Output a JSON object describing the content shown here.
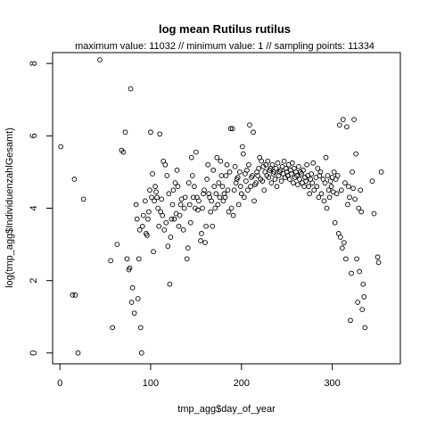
{
  "chart_data": {
    "type": "scatter",
    "title": "log mean Rutilus rutilus",
    "subtitle": "maximum value: 11032  //  minimum value: 1  // sampling points: 11334",
    "xlabel": "tmp_agg$day_of_year",
    "ylabel": "log(tmp_agg$IndividuenzahlGesamt)",
    "xlim": [
      -8,
      375
    ],
    "ylim": [
      -0.3,
      8.3
    ],
    "x_ticks": [
      0,
      100,
      200,
      300
    ],
    "x_tick_labels": [
      "0",
      "100",
      "200",
      "300"
    ],
    "y_ticks": [
      0,
      2,
      4,
      6,
      8
    ],
    "y_tick_labels": [
      "0",
      "2",
      "4",
      "6",
      "8"
    ],
    "grid": false,
    "marker": "open-circle",
    "points": [
      [
        1,
        5.7
      ],
      [
        14,
        1.6
      ],
      [
        16,
        4.8
      ],
      [
        17,
        1.6
      ],
      [
        20,
        0.0
      ],
      [
        26,
        4.25
      ],
      [
        44,
        8.1
      ],
      [
        56,
        2.55
      ],
      [
        58,
        0.7
      ],
      [
        63,
        3.0
      ],
      [
        68,
        5.6
      ],
      [
        70,
        5.55
      ],
      [
        72,
        6.1
      ],
      [
        74,
        2.6
      ],
      [
        76,
        2.3
      ],
      [
        77,
        2.35
      ],
      [
        78,
        7.3
      ],
      [
        79,
        1.4
      ],
      [
        80,
        1.8
      ],
      [
        82,
        1.1
      ],
      [
        84,
        4.1
      ],
      [
        85,
        3.7
      ],
      [
        86,
        1.5
      ],
      [
        87,
        2.6
      ],
      [
        88,
        3.4
      ],
      [
        89,
        0.7
      ],
      [
        90,
        0.0
      ],
      [
        91,
        3.5
      ],
      [
        92,
        3.8
      ],
      [
        94,
        4.2
      ],
      [
        95,
        3.3
      ],
      [
        96,
        3.25
      ],
      [
        97,
        3.7
      ],
      [
        98,
        3.9
      ],
      [
        99,
        4.5
      ],
      [
        100,
        6.1
      ],
      [
        101,
        4.3
      ],
      [
        102,
        4.95
      ],
      [
        103,
        2.8
      ],
      [
        104,
        4.2
      ],
      [
        105,
        4.6
      ],
      [
        106,
        4.45
      ],
      [
        107,
        4.3
      ],
      [
        108,
        4.0
      ],
      [
        109,
        3.5
      ],
      [
        110,
        6.05
      ],
      [
        111,
        3.9
      ],
      [
        112,
        4.25
      ],
      [
        113,
        3.8
      ],
      [
        114,
        5.3
      ],
      [
        115,
        3.4
      ],
      [
        116,
        5.2
      ],
      [
        117,
        3.6
      ],
      [
        118,
        4.9
      ],
      [
        119,
        2.95
      ],
      [
        120,
        4.4
      ],
      [
        121,
        1.9
      ],
      [
        122,
        3.2
      ],
      [
        123,
        3.7
      ],
      [
        124,
        4.1
      ],
      [
        125,
        4.5
      ],
      [
        126,
        3.7
      ],
      [
        127,
        4.7
      ],
      [
        128,
        3.85
      ],
      [
        129,
        5.05
      ],
      [
        130,
        4.6
      ],
      [
        131,
        3.5
      ],
      [
        132,
        3.8
      ],
      [
        133,
        4.1
      ],
      [
        134,
        4.25
      ],
      [
        136,
        3.4
      ],
      [
        137,
        4.0
      ],
      [
        138,
        4.3
      ],
      [
        140,
        2.6
      ],
      [
        141,
        2.9
      ],
      [
        142,
        4.7
      ],
      [
        143,
        4.1
      ],
      [
        144,
        3.6
      ],
      [
        145,
        5.4
      ],
      [
        146,
        4.9
      ],
      [
        147,
        4.3
      ],
      [
        148,
        4.6
      ],
      [
        149,
        4.0
      ],
      [
        150,
        5.55
      ],
      [
        151,
        4.3
      ],
      [
        152,
        3.95
      ],
      [
        153,
        4.2
      ],
      [
        155,
        3.1
      ],
      [
        156,
        3.3
      ],
      [
        157,
        4.0
      ],
      [
        158,
        4.4
      ],
      [
        159,
        4.5
      ],
      [
        160,
        3.05
      ],
      [
        161,
        3.5
      ],
      [
        162,
        4.8
      ],
      [
        163,
        5.2
      ],
      [
        164,
        4.4
      ],
      [
        165,
        4.3
      ],
      [
        166,
        3.9
      ],
      [
        167,
        4.2
      ],
      [
        168,
        3.5
      ],
      [
        169,
        5.05
      ],
      [
        170,
        4.6
      ],
      [
        171,
        4.0
      ],
      [
        172,
        4.4
      ],
      [
        173,
        5.4
      ],
      [
        174,
        4.1
      ],
      [
        175,
        4.7
      ],
      [
        176,
        4.3
      ],
      [
        177,
        5.3
      ],
      [
        178,
        4.9
      ],
      [
        179,
        4.6
      ],
      [
        180,
        4.2
      ],
      [
        181,
        4.4
      ],
      [
        182,
        4.3
      ],
      [
        183,
        4.9
      ],
      [
        184,
        5.2
      ],
      [
        185,
        4.5
      ],
      [
        186,
        3.9
      ],
      [
        187,
        5.0
      ],
      [
        188,
        6.2
      ],
      [
        189,
        4.0
      ],
      [
        190,
        6.2
      ],
      [
        191,
        3.8
      ],
      [
        192,
        4.5
      ],
      [
        193,
        5.15
      ],
      [
        194,
        4.7
      ],
      [
        195,
        4.8
      ],
      [
        196,
        4.85
      ],
      [
        197,
        4.1
      ],
      [
        198,
        5.0
      ],
      [
        199,
        4.6
      ],
      [
        200,
        4.4
      ],
      [
        201,
        5.7
      ],
      [
        202,
        5.5
      ],
      [
        203,
        4.3
      ],
      [
        204,
        4.95
      ],
      [
        205,
        4.75
      ],
      [
        206,
        5.05
      ],
      [
        207,
        4.5
      ],
      [
        208,
        5.2
      ],
      [
        209,
        6.3
      ],
      [
        210,
        4.6
      ],
      [
        211,
        4.85
      ],
      [
        212,
        4.9
      ],
      [
        213,
        6.1
      ],
      [
        214,
        4.2
      ],
      [
        215,
        4.65
      ],
      [
        216,
        4.7
      ],
      [
        217,
        5.0
      ],
      [
        218,
        4.9
      ],
      [
        219,
        5.1
      ],
      [
        220,
        5.4
      ],
      [
        221,
        4.8
      ],
      [
        222,
        5.3
      ],
      [
        223,
        4.75
      ],
      [
        224,
        5.15
      ],
      [
        225,
        4.5
      ],
      [
        226,
        5.0
      ],
      [
        227,
        5.2
      ],
      [
        228,
        4.9
      ],
      [
        229,
        5.3
      ],
      [
        230,
        4.85
      ],
      [
        231,
        5.05
      ],
      [
        232,
        5.1
      ],
      [
        233,
        4.7
      ],
      [
        234,
        5.2
      ],
      [
        235,
        4.95
      ],
      [
        236,
        5.0
      ],
      [
        237,
        4.8
      ],
      [
        238,
        5.1
      ],
      [
        239,
        4.6
      ],
      [
        240,
        5.25
      ],
      [
        241,
        4.9
      ],
      [
        242,
        5.0
      ],
      [
        243,
        5.05
      ],
      [
        244,
        4.75
      ],
      [
        245,
        5.15
      ],
      [
        246,
        4.95
      ],
      [
        247,
        5.3
      ],
      [
        248,
        4.85
      ],
      [
        249,
        5.1
      ],
      [
        250,
        5.0
      ],
      [
        251,
        4.9
      ],
      [
        252,
        5.2
      ],
      [
        253,
        4.8
      ],
      [
        254,
        5.05
      ],
      [
        255,
        4.95
      ],
      [
        256,
        5.25
      ],
      [
        257,
        4.7
      ],
      [
        258,
        5.1
      ],
      [
        259,
        4.85
      ],
      [
        260,
        5.0
      ],
      [
        261,
        4.9
      ],
      [
        262,
        4.65
      ],
      [
        263,
        5.15
      ],
      [
        264,
        4.8
      ],
      [
        265,
        5.0
      ],
      [
        266,
        4.95
      ],
      [
        267,
        4.7
      ],
      [
        268,
        5.05
      ],
      [
        269,
        4.6
      ],
      [
        270,
        4.85
      ],
      [
        271,
        4.75
      ],
      [
        272,
        5.2
      ],
      [
        273,
        4.9
      ],
      [
        274,
        4.6
      ],
      [
        275,
        4.4
      ],
      [
        276,
        4.8
      ],
      [
        277,
        4.95
      ],
      [
        278,
        4.7
      ],
      [
        279,
        5.25
      ],
      [
        280,
        4.5
      ],
      [
        282,
        4.85
      ],
      [
        283,
        4.6
      ],
      [
        284,
        5.1
      ],
      [
        285,
        4.3
      ],
      [
        286,
        4.9
      ],
      [
        287,
        5.0
      ],
      [
        288,
        4.4
      ],
      [
        290,
        4.8
      ],
      [
        291,
        4.2
      ],
      [
        292,
        4.7
      ],
      [
        293,
        5.4
      ],
      [
        294,
        4.0
      ],
      [
        295,
        4.9
      ],
      [
        296,
        4.5
      ],
      [
        297,
        4.3
      ],
      [
        298,
        4.75
      ],
      [
        299,
        4.6
      ],
      [
        300,
        4.85
      ],
      [
        301,
        4.45
      ],
      [
        302,
        5.0
      ],
      [
        303,
        3.6
      ],
      [
        304,
        4.8
      ],
      [
        305,
        4.4
      ],
      [
        306,
        4.9
      ],
      [
        307,
        3.3
      ],
      [
        308,
        6.3
      ],
      [
        309,
        3.2
      ],
      [
        310,
        4.5
      ],
      [
        311,
        2.9
      ],
      [
        312,
        6.45
      ],
      [
        313,
        3.05
      ],
      [
        314,
        4.7
      ],
      [
        315,
        2.6
      ],
      [
        316,
        6.25
      ],
      [
        317,
        4.1
      ],
      [
        318,
        4.6
      ],
      [
        319,
        4.3
      ],
      [
        320,
        0.9
      ],
      [
        321,
        2.2
      ],
      [
        322,
        5.0
      ],
      [
        323,
        4.55
      ],
      [
        324,
        6.45
      ],
      [
        325,
        4.25
      ],
      [
        326,
        5.5
      ],
      [
        327,
        2.6
      ],
      [
        328,
        1.4
      ],
      [
        329,
        4.0
      ],
      [
        330,
        2.25
      ],
      [
        331,
        4.5
      ],
      [
        332,
        3.9
      ],
      [
        333,
        1.2
      ],
      [
        334,
        1.9
      ],
      [
        335,
        1.55
      ],
      [
        336,
        0.7
      ],
      [
        344,
        4.75
      ],
      [
        346,
        3.85
      ],
      [
        350,
        2.65
      ],
      [
        351,
        2.5
      ],
      [
        354,
        5.0
      ]
    ]
  }
}
